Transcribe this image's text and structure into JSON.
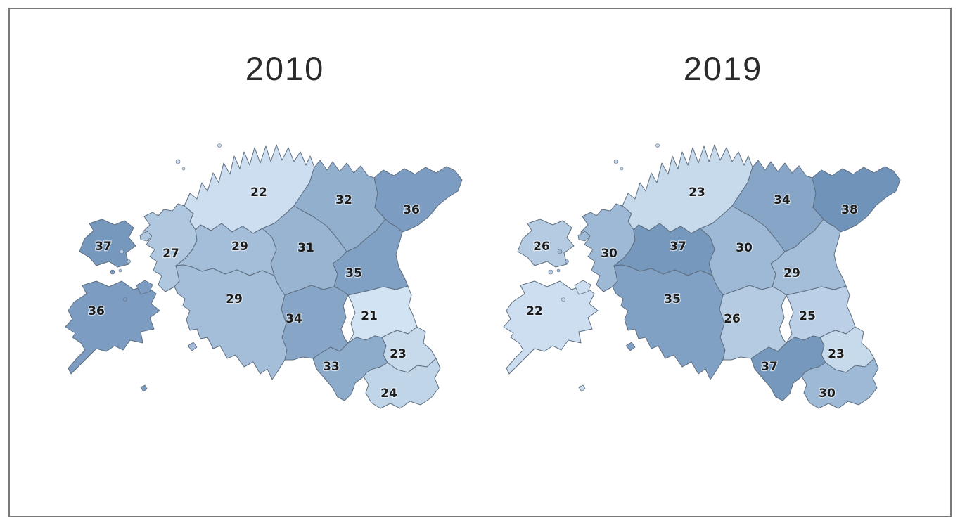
{
  "chart_data": {
    "type": "choropleth",
    "geography": "Estonia counties",
    "years": [
      {
        "year": "2010",
        "values": {
          "harju": 22,
          "laane_viru": 32,
          "ida_viru": 36,
          "hiiu": 37,
          "laane": 27,
          "rapla": 29,
          "jarva": 31,
          "jogeva": 35,
          "saare": 36,
          "parnu": 29,
          "viljandi": 34,
          "tartu": 21,
          "valga": 33,
          "polva": 23,
          "voru": 24
        }
      },
      {
        "year": "2019",
        "values": {
          "harju": 23,
          "laane_viru": 34,
          "ida_viru": 38,
          "hiiu": 26,
          "laane": 30,
          "rapla": 37,
          "jarva": 30,
          "jogeva": 29,
          "saare": 22,
          "parnu": 35,
          "viljandi": 26,
          "tartu": 25,
          "valga": 37,
          "polva": 23,
          "voru": 30
        }
      }
    ],
    "value_range": [
      21,
      38
    ],
    "legend": "none",
    "colors": {
      "scale_low": "#d2e3f3",
      "scale_high": "#7093ba",
      "border": "#5e6e80",
      "label": "#1b1b1b",
      "label_halo": "#f0f5fa",
      "title": "#2b2b2b",
      "frame": "#7a7a7a",
      "background": "#ffffff"
    }
  }
}
